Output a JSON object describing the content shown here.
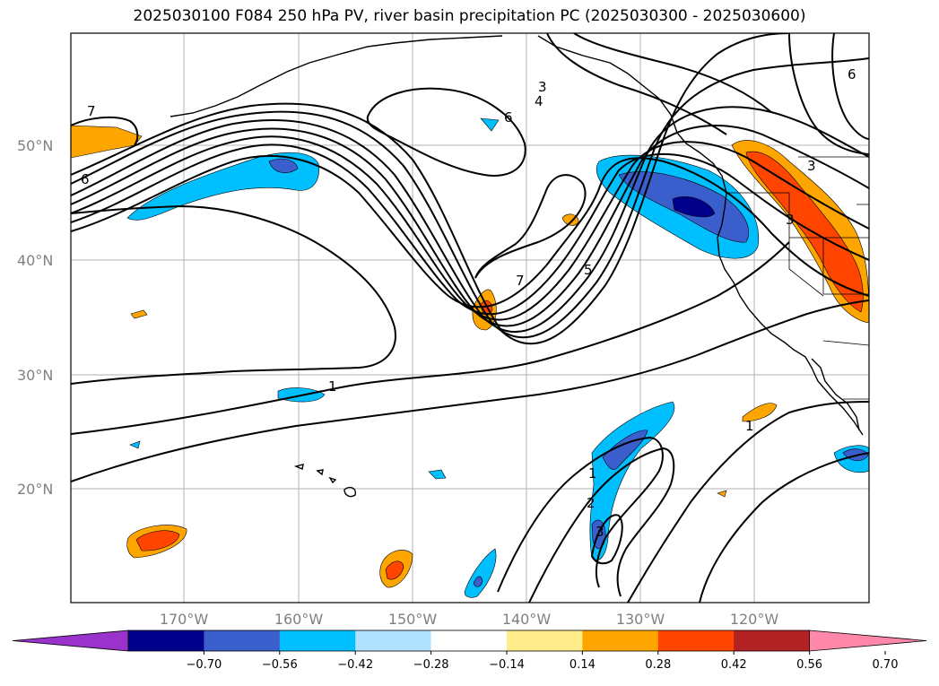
{
  "title": "2025030100 F084 250 hPa PV, river basin precipitation PC (2025030300 - 2025030600)",
  "lat_labels": [
    "50°N",
    "40°N",
    "30°N",
    "20°N"
  ],
  "lon_labels": [
    "170°W",
    "160°W",
    "150°W",
    "140°W",
    "130°W",
    "120°W"
  ],
  "colorbar": {
    "colors": [
      "#9933cc",
      "#00008b",
      "#3a5fcd",
      "#00bfff",
      "#b0e2ff",
      "#ffffff",
      "#ffec8b",
      "#ffa500",
      "#ff4500",
      "#b22222",
      "#ff88aa"
    ],
    "ticks": [
      "−0.70",
      "−0.56",
      "−0.42",
      "−0.28",
      "−0.14",
      "0.14",
      "0.28",
      "0.42",
      "0.56",
      "0.70"
    ]
  },
  "contour_labels": [
    "7",
    "6",
    "3",
    "4",
    "6",
    "7",
    "5",
    "1",
    "1",
    "1",
    "2",
    "3",
    "3",
    "3",
    "6"
  ]
}
